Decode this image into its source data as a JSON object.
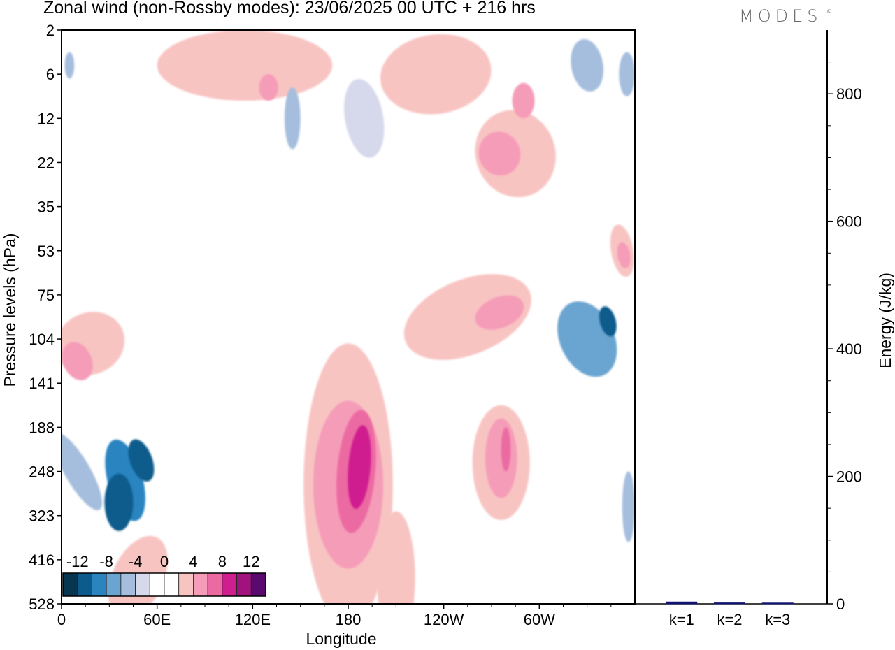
{
  "header": {
    "title": "Zonal wind (non-Rossby modes):  23/06/2025  00 UTC  + 216 hrs",
    "brand": "MODES",
    "brand_mark": "©"
  },
  "chart_data": [
    {
      "type": "heatmap",
      "title": "Zonal wind (non-Rossby modes):  23/06/2025  00 UTC  + 216 hrs",
      "xlabel": "Longitude",
      "ylabel": "Pressure levels (hPa)",
      "x_ticks": [
        "0",
        "60E",
        "120E",
        "180",
        "120W",
        "60W"
      ],
      "x_tick_values": [
        0,
        60,
        120,
        180,
        240,
        300
      ],
      "xlim": [
        0,
        360
      ],
      "y_ticks": [
        "2",
        "6",
        "12",
        "22",
        "35",
        "53",
        "75",
        "104",
        "141",
        "188",
        "248",
        "323",
        "416",
        "528"
      ],
      "y_scale": "pressure levels (inverted)",
      "colorbar": {
        "labels": [
          "-12",
          "-8",
          "-4",
          "0",
          "4",
          "8",
          "12"
        ],
        "colors": [
          "#073650",
          "#0b5b8c",
          "#2a84c0",
          "#6aa4d0",
          "#a6bede",
          "#d6d8ec",
          "#ffffff",
          "#ffffff",
          "#f8c4c2",
          "#f59cb8",
          "#ec6aa2",
          "#cf1f8e",
          "#a0127d",
          "#5a0a6e"
        ],
        "placement": "bottom-left inside plot"
      },
      "features": [
        {
          "kind": "negative",
          "lon": 40,
          "lev": 10.2,
          "rx": 11,
          "ry": 0.95,
          "level": 4,
          "angle": -15
        },
        {
          "kind": "negative",
          "lon": 36,
          "lev": 10.7,
          "rx": 9,
          "ry": 0.65,
          "level": 5,
          "angle": 0
        },
        {
          "kind": "negative",
          "lon": 50,
          "lev": 9.75,
          "rx": 7,
          "ry": 0.5,
          "level": 5,
          "angle": -20
        },
        {
          "kind": "negative",
          "lon": 10,
          "lev": 10.0,
          "rx": 8,
          "ry": 1.0,
          "level": 2,
          "angle": -30
        },
        {
          "kind": "negative",
          "lon": 356,
          "lev": 10.8,
          "rx": 4,
          "ry": 0.8,
          "level": 2,
          "angle": 0
        },
        {
          "kind": "negative",
          "lon": 330,
          "lev": 7.0,
          "rx": 17,
          "ry": 0.9,
          "level": 3,
          "angle": -25
        },
        {
          "kind": "negative",
          "lon": 343,
          "lev": 6.6,
          "rx": 5,
          "ry": 0.35,
          "level": 5,
          "angle": -15
        },
        {
          "kind": "negative",
          "lon": 190,
          "lev": 2.0,
          "rx": 12,
          "ry": 0.9,
          "level": 1,
          "angle": -10
        },
        {
          "kind": "negative",
          "lon": 145,
          "lev": 2.0,
          "rx": 5,
          "ry": 0.7,
          "level": 2,
          "angle": 0
        },
        {
          "kind": "negative",
          "lon": 330,
          "lev": 0.8,
          "rx": 10,
          "ry": 0.6,
          "level": 2,
          "angle": -10
        },
        {
          "kind": "negative",
          "lon": 355,
          "lev": 1.0,
          "rx": 5,
          "ry": 0.5,
          "level": 2,
          "angle": 0
        },
        {
          "kind": "negative",
          "lon": 5,
          "lev": 0.8,
          "rx": 3,
          "ry": 0.3,
          "level": 2,
          "angle": 0
        },
        {
          "kind": "positive",
          "lon": 180,
          "lev": 10.3,
          "rx": 28,
          "ry": 3.2,
          "level": 1,
          "angle": 0
        },
        {
          "kind": "positive",
          "lon": 180,
          "lev": 10.3,
          "rx": 22,
          "ry": 1.9,
          "level": 2,
          "angle": 0
        },
        {
          "kind": "positive",
          "lon": 185,
          "lev": 10.0,
          "rx": 12,
          "ry": 1.4,
          "level": 3,
          "angle": 5
        },
        {
          "kind": "positive",
          "lon": 187,
          "lev": 9.9,
          "rx": 7,
          "ry": 0.95,
          "level": 4,
          "angle": 5
        },
        {
          "kind": "positive",
          "lon": 276,
          "lev": 9.8,
          "rx": 18,
          "ry": 1.3,
          "level": 1,
          "angle": 0
        },
        {
          "kind": "positive",
          "lon": 276,
          "lev": 9.7,
          "rx": 10,
          "ry": 0.9,
          "level": 2,
          "angle": 0
        },
        {
          "kind": "positive",
          "lon": 279,
          "lev": 9.5,
          "rx": 3,
          "ry": 0.5,
          "level": 3,
          "angle": 0
        },
        {
          "kind": "positive",
          "lon": 255,
          "lev": 6.5,
          "rx": 42,
          "ry": 0.85,
          "level": 1,
          "angle": -22
        },
        {
          "kind": "positive",
          "lon": 275,
          "lev": 6.4,
          "rx": 16,
          "ry": 0.35,
          "level": 2,
          "angle": -22
        },
        {
          "kind": "positive",
          "lon": 18,
          "lev": 7.1,
          "rx": 22,
          "ry": 0.7,
          "level": 1,
          "angle": -24
        },
        {
          "kind": "positive",
          "lon": 10,
          "lev": 7.5,
          "rx": 9,
          "ry": 0.45,
          "level": 2,
          "angle": -24
        },
        {
          "kind": "positive",
          "lon": 285,
          "lev": 2.8,
          "rx": 25,
          "ry": 1.0,
          "level": 1,
          "angle": -20
        },
        {
          "kind": "positive",
          "lon": 275,
          "lev": 2.8,
          "rx": 13,
          "ry": 0.5,
          "level": 2,
          "angle": -20
        },
        {
          "kind": "positive",
          "lon": 290,
          "lev": 1.6,
          "rx": 7,
          "ry": 0.4,
          "level": 2,
          "angle": 0
        },
        {
          "kind": "positive",
          "lon": 235,
          "lev": 1.0,
          "rx": 35,
          "ry": 0.9,
          "level": 1,
          "angle": -8
        },
        {
          "kind": "positive",
          "lon": 115,
          "lev": 0.8,
          "rx": 55,
          "ry": 0.8,
          "level": 1,
          "angle": 0
        },
        {
          "kind": "positive",
          "lon": 130,
          "lev": 1.3,
          "rx": 6,
          "ry": 0.3,
          "level": 2,
          "angle": 0
        },
        {
          "kind": "positive",
          "lon": 352,
          "lev": 5.0,
          "rx": 7,
          "ry": 0.6,
          "level": 1,
          "angle": -10
        },
        {
          "kind": "positive",
          "lon": 353,
          "lev": 5.1,
          "rx": 4,
          "ry": 0.3,
          "level": 2,
          "angle": -10
        },
        {
          "kind": "positive",
          "lon": 210,
          "lev": 12.4,
          "rx": 12,
          "ry": 1.5,
          "level": 1,
          "angle": 0
        },
        {
          "kind": "positive",
          "lon": 48,
          "lev": 12.4,
          "rx": 16,
          "ry": 1.0,
          "level": 1,
          "angle": 25
        }
      ]
    },
    {
      "type": "bar",
      "categories": [
        "k=1",
        "k=2",
        "k=3"
      ],
      "values": [
        3,
        1.5,
        0.8
      ],
      "ylabel": "Energy (J/kg)",
      "ylim": [
        0,
        900
      ],
      "y_ticks": [
        "0",
        "200",
        "400",
        "600",
        "800"
      ],
      "y_tick_values": [
        0,
        200,
        400,
        600,
        800
      ],
      "bar_color": "#10126e"
    }
  ]
}
